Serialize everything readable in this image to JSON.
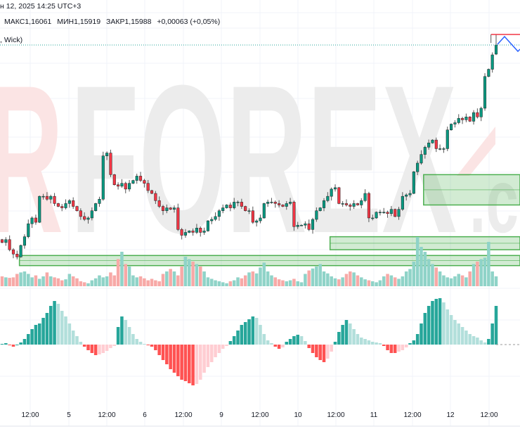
{
  "header": {
    "date_line": "н 12, 2025 14:25 UTC+3",
    "high": "МАКС1,16061",
    "low": "МИН1,15919",
    "close": "ЗАКР1,15988",
    "change": "+0,00063 (+0,05%)",
    "indicator_label": ", Wick)"
  },
  "watermark": {
    "left": "R",
    "main": "FOREX",
    "suffix": ".c"
  },
  "colors": {
    "up": "#089981",
    "down": "#f23645",
    "vol_up": "#8fd3c8",
    "vol_down": "#f7a9a7",
    "zone": "#4caf50",
    "osc_up_strong": "#26a69a",
    "osc_up_weak": "#b2dfdb",
    "osc_down_strong": "#ff5252",
    "osc_down_weak": "#ffcdd2",
    "zigzag": "#2962ff",
    "resistance": "#f23645"
  },
  "chart_data": {
    "type": "candlestick",
    "timeframe_note": "",
    "x_ticks": [
      "12:00",
      "5",
      "12:00",
      "6",
      "12:00",
      "9",
      "12:00",
      "10",
      "12:00",
      "11",
      "12:00",
      "12",
      "12:00"
    ],
    "ylim": [
      1.144,
      1.163
    ],
    "last_bar": {
      "open": 1.15925,
      "high": 1.16061,
      "low": 1.15919,
      "close": 1.15988
    },
    "closes": [
      1.1462,
      1.1464,
      1.1457,
      1.1454,
      1.1452,
      1.146,
      1.1466,
      1.1475,
      1.1479,
      1.1476,
      1.1494,
      1.1494,
      1.1492,
      1.1494,
      1.1489,
      1.1487,
      1.1486,
      1.1489,
      1.1491,
      1.1487,
      1.1484,
      1.148,
      1.1478,
      1.1479,
      1.1484,
      1.1489,
      1.1492,
      1.1522,
      1.1524,
      1.1509,
      1.1502,
      1.1501,
      1.1503,
      1.1499,
      1.1503,
      1.1505,
      1.1508,
      1.1505,
      1.1503,
      1.1498,
      1.1496,
      1.1491,
      1.1487,
      1.1484,
      1.1486,
      1.1485,
      1.1486,
      1.1471,
      1.1467,
      1.1469,
      1.147,
      1.1469,
      1.1472,
      1.1469,
      1.147,
      1.1477,
      1.1478,
      1.148,
      1.1484,
      1.1486,
      1.1488,
      1.1486,
      1.149,
      1.149,
      1.1487,
      1.1484,
      1.1484,
      1.1476,
      1.1477,
      1.1479,
      1.1489,
      1.149,
      1.149,
      1.1489,
      1.1488,
      1.1487,
      1.1489,
      1.149,
      1.1473,
      1.1474,
      1.1474,
      1.1475,
      1.1471,
      1.1478,
      1.1484,
      1.1486,
      1.1491,
      1.1494,
      1.1499,
      1.15,
      1.1489,
      1.1489,
      1.1488,
      1.1487,
      1.1489,
      1.1488,
      1.1491,
      1.1496,
      1.1479,
      1.1479,
      1.1483,
      1.1483,
      1.1483,
      1.1482,
      1.1485,
      1.148,
      1.1485,
      1.1494,
      1.1495,
      1.1496,
      1.1511,
      1.1517,
      1.1523,
      1.1528,
      1.1531,
      1.1533,
      1.1527,
      1.1527,
      1.1527,
      1.154,
      1.1544,
      1.1545,
      1.1548,
      1.1547,
      1.1549,
      1.1546,
      1.1552,
      1.1549,
      1.1555,
      1.1577,
      1.1582,
      1.1592,
      1.15988
    ],
    "volume_relative": [
      20,
      18,
      17,
      18,
      25,
      28,
      30,
      25,
      18,
      22,
      15,
      20,
      28,
      20,
      18,
      16,
      12,
      14,
      25,
      20,
      16,
      10,
      8,
      6,
      12,
      16,
      22,
      18,
      20,
      28,
      22,
      55,
      70,
      45,
      40,
      22,
      18,
      20,
      16,
      12,
      15,
      12,
      10,
      25,
      30,
      35,
      30,
      22,
      40,
      60,
      55,
      50,
      45,
      40,
      30,
      18,
      15,
      12,
      10,
      8,
      6,
      10,
      12,
      18,
      16,
      22,
      28,
      30,
      26,
      38,
      48,
      30,
      22,
      18,
      14,
      12,
      10,
      12,
      15,
      10,
      8,
      25,
      32,
      36,
      40,
      45,
      30,
      26,
      20,
      16,
      14,
      18,
      25,
      30,
      28,
      22,
      18,
      14,
      12,
      10,
      8,
      12,
      20,
      25,
      22,
      18,
      15,
      20,
      30,
      35,
      50,
      100,
      80,
      70,
      55,
      45,
      38,
      30,
      22,
      18,
      16,
      20,
      25,
      22,
      18,
      30,
      45,
      50,
      55,
      58,
      90,
      30,
      20
    ],
    "oscillator": [
      1,
      2,
      -1,
      -3,
      0,
      3,
      8,
      15,
      22,
      28,
      30,
      38,
      45,
      55,
      62,
      58,
      48,
      40,
      30,
      20,
      12,
      4,
      -3,
      -8,
      -12,
      -15,
      -14,
      -12,
      -9,
      -5,
      -2,
      25,
      40,
      35,
      25,
      15,
      8,
      4,
      1,
      -1,
      -3,
      -8,
      -15,
      -22,
      -28,
      -35,
      -40,
      -45,
      -50,
      -52,
      -55,
      -58,
      -56,
      -50,
      -40,
      -32,
      -25,
      -18,
      -12,
      -6,
      -2,
      5,
      12,
      20,
      28,
      32,
      36,
      40,
      38,
      28,
      15,
      6,
      2,
      -3,
      -6,
      -4,
      4,
      8,
      12,
      14,
      12,
      5,
      -5,
      -12,
      -18,
      -22,
      -25,
      -20,
      -10,
      4,
      18,
      28,
      35,
      30,
      22,
      15,
      10,
      8,
      6,
      4,
      3,
      2,
      -2,
      -8,
      -12,
      -12,
      -10,
      -8,
      -4,
      2,
      6,
      15,
      30,
      45,
      55,
      62,
      65,
      66,
      60,
      50,
      42,
      35,
      30,
      25,
      20,
      15,
      12,
      10,
      6,
      3,
      8,
      30,
      55
    ],
    "zones": [
      {
        "start_bar": 113,
        "top": 1.1509,
        "bottom": 1.1488
      },
      {
        "start_bar": 88,
        "top": 1.1466,
        "bottom": 1.1457
      },
      {
        "start_bar": 5,
        "top": 1.1453,
        "bottom": 1.1446
      }
    ],
    "resistance_line": {
      "start_bar": 131,
      "price": 1.16061
    },
    "last_price_line": 1.15988
  }
}
